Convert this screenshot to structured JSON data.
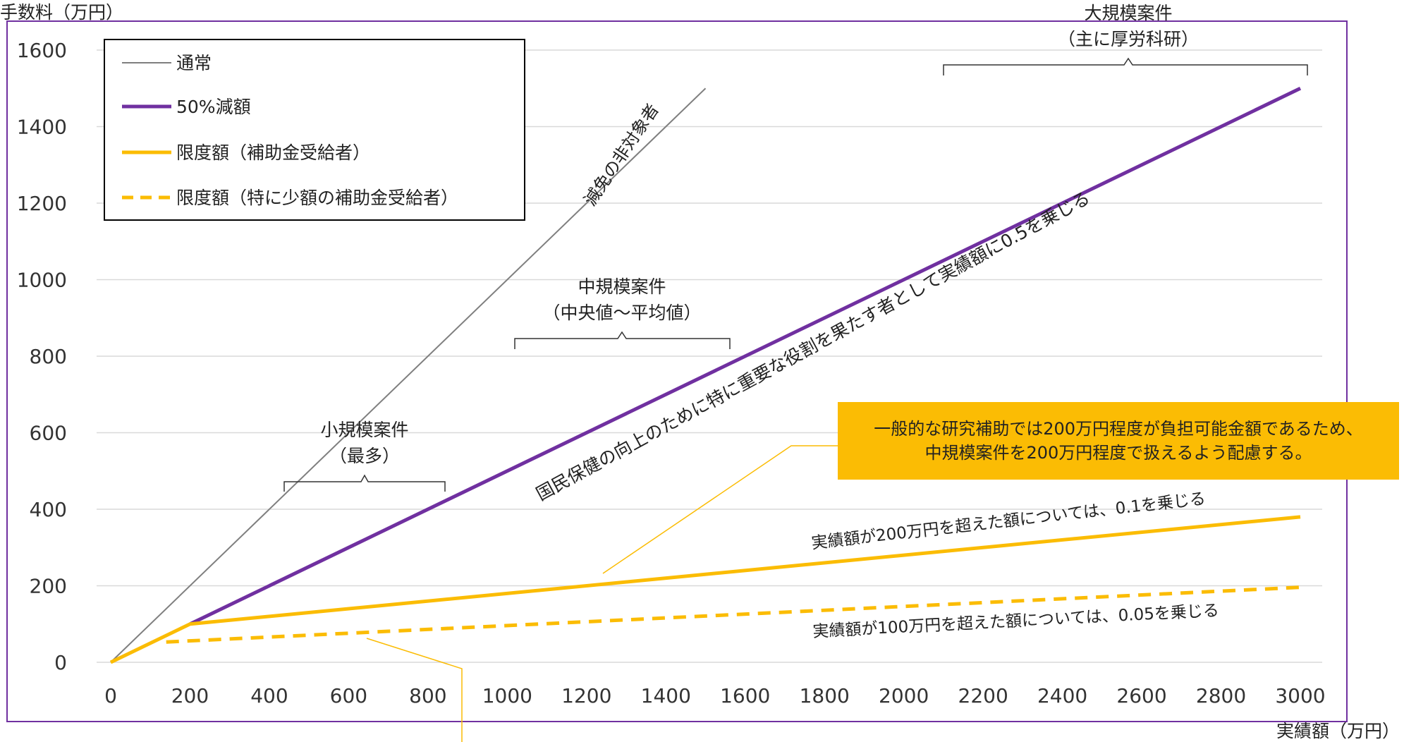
{
  "colors": {
    "frame": "#7030a0",
    "normal": "#7f7f7f",
    "half": "#7030a0",
    "cap": "#fbbc04",
    "box": "#fbbc04",
    "grid": "#d9d9d9"
  },
  "chart_data": {
    "type": "line",
    "ylabel": "手数料（万円）",
    "xlabel": "実績額（万円）",
    "xlim": [
      0,
      3000
    ],
    "ylim": [
      0,
      1600
    ],
    "x_ticks": [
      "0",
      "200",
      "400",
      "600",
      "800",
      "1000",
      "1200",
      "1400",
      "1600",
      "1800",
      "2000",
      "2200",
      "2400",
      "2600",
      "2800",
      "3000"
    ],
    "y_ticks": [
      "0",
      "200",
      "400",
      "600",
      "800",
      "1000",
      "1200",
      "1400",
      "1600"
    ],
    "grid": "horizontal",
    "legend_position": "top-left",
    "series": [
      {
        "name": "通常",
        "style": "solid-thin",
        "color": "#7f7f7f",
        "x": [
          0,
          1500
        ],
        "y": [
          0,
          1500
        ]
      },
      {
        "name": "50%減額",
        "style": "solid-thick",
        "color": "#7030a0",
        "x": [
          200,
          3000
        ],
        "y": [
          100,
          1500
        ]
      },
      {
        "name": "限度額（補助金受給者）",
        "style": "solid",
        "color": "#fbbc04",
        "x": [
          0,
          200,
          3000
        ],
        "y": [
          0,
          100,
          380
        ]
      },
      {
        "name": "限度額（特に少額の補助金受給者）",
        "style": "dashed",
        "color": "#fbbc04",
        "x": [
          140,
          3000
        ],
        "y": [
          53,
          196
        ]
      }
    ],
    "annotations": {
      "small": {
        "title": "小規模案件",
        "sub": "（最多）"
      },
      "medium": {
        "title": "中規模案件",
        "sub": "（中央値～平均値）"
      },
      "large": {
        "title": "大規模案件",
        "sub": "（主に厚労科研）"
      },
      "normal_line_label": "減免の非対象者",
      "half_line_label": "国民保健の向上のために特に重要な役割を果たす者として実績額に0.5を乗じる",
      "cap_line_label": "実績額が200万円を超えた額については、0.1を乗じる",
      "dashed_line_label": "実績額が100万円を超えた額については、0.05を乗じる",
      "callout_line1": "一般的な研究補助では200万円程度が負担可能金額であるため、",
      "callout_line2": "中規模案件を200万円程度で扱えるよう配慮する。"
    }
  }
}
